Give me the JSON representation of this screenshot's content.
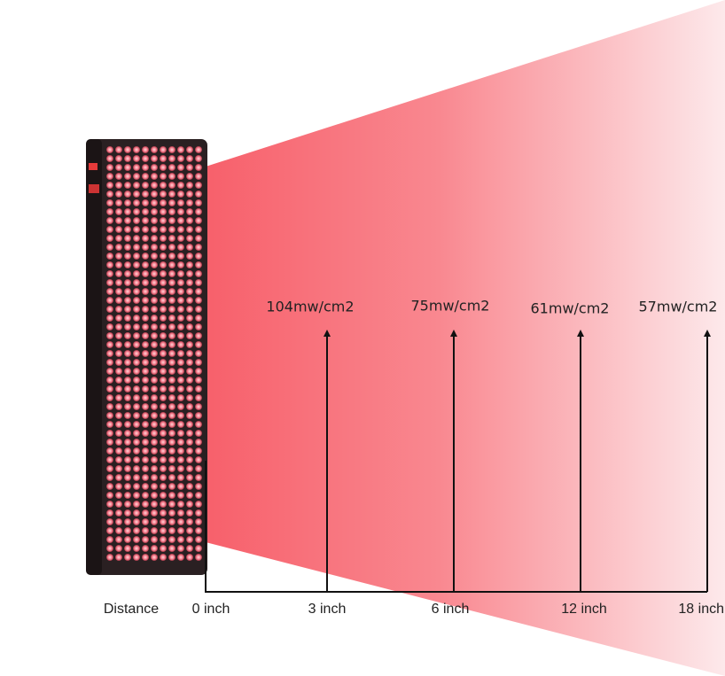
{
  "distance_label": "Distance",
  "distances": [
    "0 inch",
    "3 inch",
    "6 inch",
    "12 inch",
    "18 inch"
  ],
  "readings": [
    "104mw/cm2",
    "75mw/cm2",
    "61mw/cm2",
    "57mw/cm2"
  ]
}
